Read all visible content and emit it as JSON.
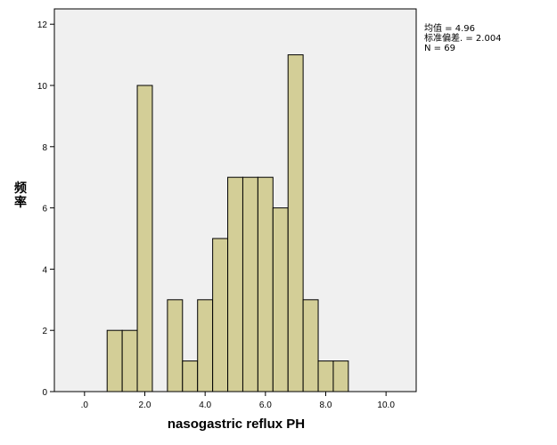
{
  "chart_data": {
    "type": "bar",
    "subtype": "histogram",
    "xlabel": "nasogastric reflux PH",
    "ylabel": "频率",
    "xlim": [
      -1.0,
      11.0
    ],
    "ylim": [
      0,
      12.5
    ],
    "x_ticks": [
      ".0",
      "2.0",
      "4.0",
      "6.0",
      "8.0",
      "10.0"
    ],
    "x_tick_values": [
      0,
      2,
      4,
      6,
      8,
      10
    ],
    "y_ticks": [
      "0",
      "2",
      "4",
      "6",
      "8",
      "10",
      "12"
    ],
    "y_tick_values": [
      0,
      2,
      4,
      6,
      8,
      10,
      12
    ],
    "bin_width": 0.5,
    "bins": [
      {
        "x0": 0.75,
        "x1": 1.25,
        "count": 2
      },
      {
        "x0": 1.25,
        "x1": 1.75,
        "count": 2
      },
      {
        "x0": 1.75,
        "x1": 2.25,
        "count": 10
      },
      {
        "x0": 2.75,
        "x1": 3.25,
        "count": 3
      },
      {
        "x0": 3.25,
        "x1": 3.75,
        "count": 1
      },
      {
        "x0": 3.75,
        "x1": 4.25,
        "count": 3
      },
      {
        "x0": 4.25,
        "x1": 4.75,
        "count": 5
      },
      {
        "x0": 4.75,
        "x1": 5.25,
        "count": 7
      },
      {
        "x0": 5.25,
        "x1": 5.75,
        "count": 7
      },
      {
        "x0": 5.75,
        "x1": 6.25,
        "count": 7
      },
      {
        "x0": 6.25,
        "x1": 6.75,
        "count": 6
      },
      {
        "x0": 6.75,
        "x1": 7.25,
        "count": 11
      },
      {
        "x0": 7.25,
        "x1": 7.75,
        "count": 3
      },
      {
        "x0": 7.75,
        "x1": 8.25,
        "count": 1
      },
      {
        "x0": 8.25,
        "x1": 8.75,
        "count": 1
      }
    ],
    "stats": {
      "mean_label": "均值 = 4.96",
      "sd_label": "标准偏差. = 2.004",
      "n_label": "N = 69"
    },
    "colors": {
      "plot_background": "#f0f0f0",
      "bar_fill": "#d3ce97",
      "bar_stroke": "#000000"
    },
    "grid": false
  }
}
